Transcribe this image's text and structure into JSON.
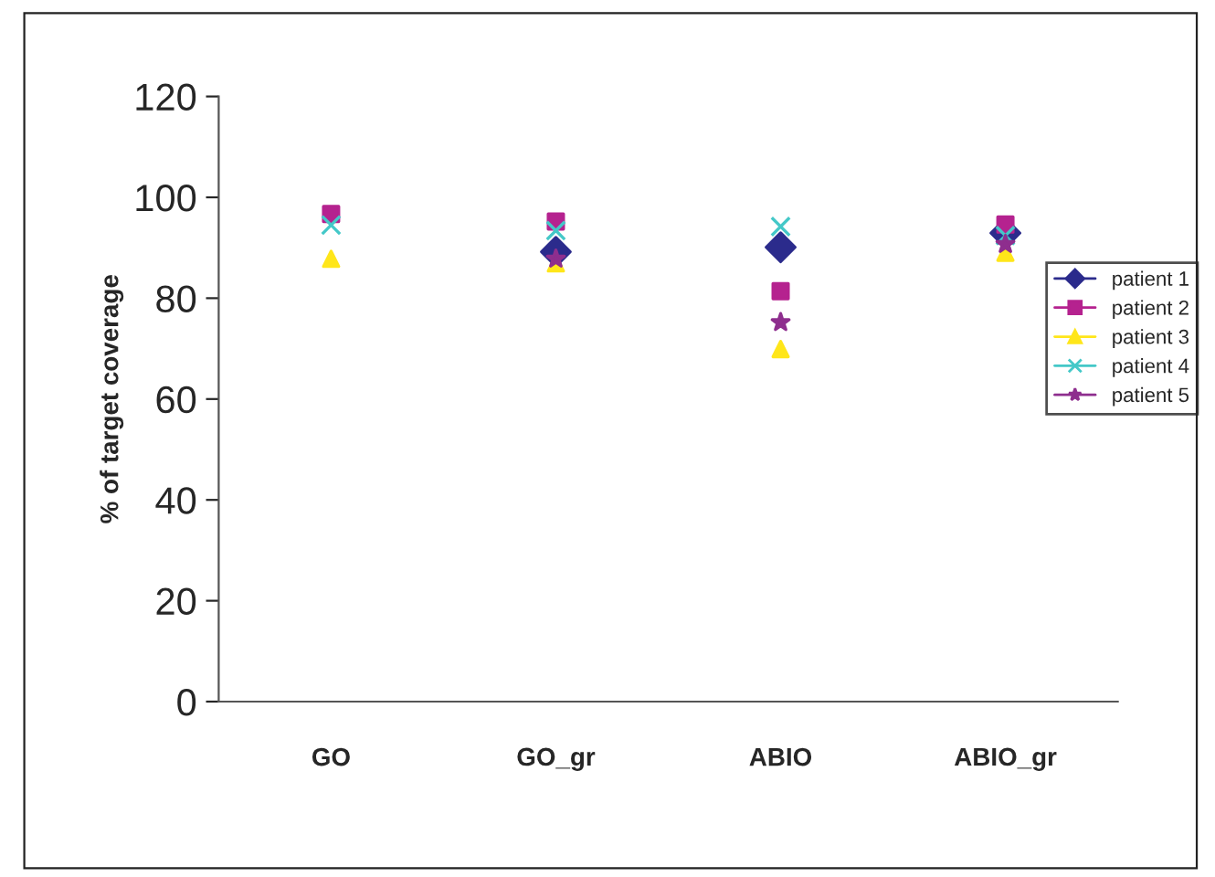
{
  "chart_data": {
    "type": "scatter",
    "ylabel": "% of target coverage",
    "categories": [
      "GO",
      "GO_gr",
      "ABIO",
      "ABIO_gr"
    ],
    "series": [
      {
        "name": "patient 1",
        "color": "#2b2b8c",
        "marker": "diamond",
        "values": [
          null,
          89.2,
          90.1,
          92.9
        ]
      },
      {
        "name": "patient 2",
        "color": "#b5228f",
        "marker": "square",
        "values": [
          96.7,
          95.2,
          81.4,
          94.6
        ]
      },
      {
        "name": "patient 3",
        "color": "#ffe61a",
        "marker": "triangle",
        "values": [
          87.8,
          86.9,
          69.9,
          89.0
        ]
      },
      {
        "name": "patient 4",
        "color": "#44c8c8",
        "marker": "cross",
        "values": [
          94.5,
          93.4,
          94.2,
          92.4
        ]
      },
      {
        "name": "patient 5",
        "color": "#8e2e8e",
        "marker": "star",
        "values": [
          null,
          87.8,
          75.2,
          90.7
        ]
      }
    ],
    "ylim": [
      0,
      120
    ],
    "yticks": [
      0,
      20,
      40,
      60,
      80,
      100,
      120
    ],
    "grid": false,
    "legend": "right"
  }
}
